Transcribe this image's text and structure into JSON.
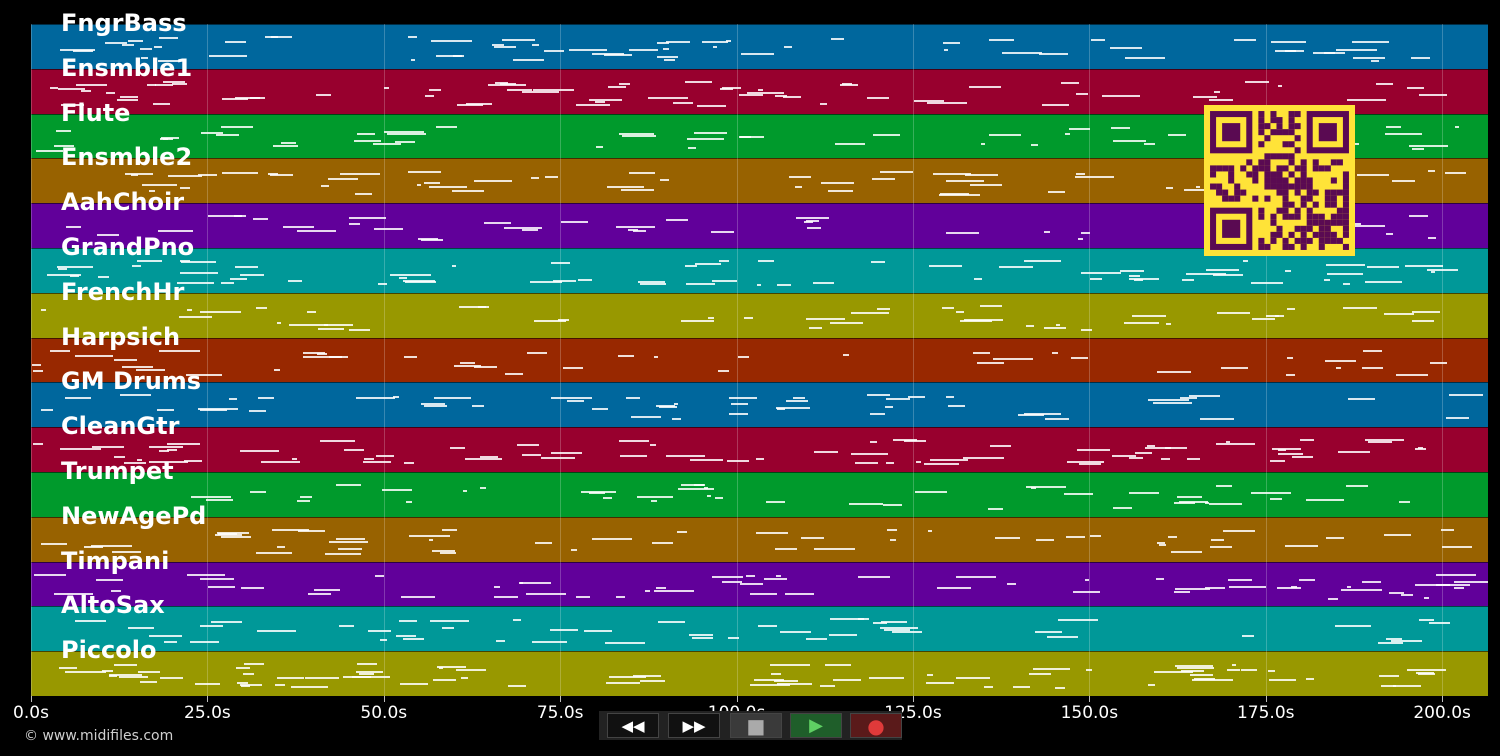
{
  "tracks": [
    {
      "name": "FngrBass",
      "color": "#00679d"
    },
    {
      "name": "Ensmble1",
      "color": "#98002e"
    },
    {
      "name": "Flute",
      "color": "#009a2c"
    },
    {
      "name": "Ensmble2",
      "color": "#986200"
    },
    {
      "name": "AahChoir",
      "color": "#61009a"
    },
    {
      "name": "GrandPno",
      "color": "#009898"
    },
    {
      "name": "FrenchHr",
      "color": "#989800"
    },
    {
      "name": "Harpsich",
      "color": "#982800"
    },
    {
      "name": "GM Drums",
      "color": "#00679d"
    },
    {
      "name": "CleanGtr",
      "color": "#98002e"
    },
    {
      "name": "Trumpet",
      "color": "#009a2c"
    },
    {
      "name": "NewAgePd",
      "color": "#986200"
    },
    {
      "name": "Timpani",
      "color": "#61009a"
    },
    {
      "name": "AltoSax",
      "color": "#009898"
    },
    {
      "name": "Piccolo",
      "color": "#989800"
    }
  ],
  "time_axis": {
    "max_seconds": 206.5,
    "ticks": [
      {
        "value": 0,
        "label": "0.0s"
      },
      {
        "value": 25,
        "label": "25.0s"
      },
      {
        "value": 50,
        "label": "50.0s"
      },
      {
        "value": 75,
        "label": "75.0s"
      },
      {
        "value": 100,
        "label": "100.0s"
      },
      {
        "value": 125,
        "label": "125.0s"
      },
      {
        "value": 150,
        "label": "150.0s"
      },
      {
        "value": 175,
        "label": "175.0s"
      },
      {
        "value": 200,
        "label": "200.0s"
      }
    ]
  },
  "transport": {
    "rewind": {
      "icon": "rewind-icon",
      "glyph": "◀◀"
    },
    "fast_forward": {
      "icon": "fast-forward-icon",
      "glyph": "▶▶"
    },
    "stop": {
      "icon": "stop-icon",
      "glyph": "■"
    },
    "play": {
      "icon": "play-icon",
      "glyph": "▶"
    },
    "record": {
      "icon": "record-icon",
      "glyph": "●"
    }
  },
  "copyright": "© www.midifiles.com",
  "colors": {
    "background": "#000000",
    "qr_bg": "#ffe338",
    "qr_fg": "#5a0a52"
  }
}
